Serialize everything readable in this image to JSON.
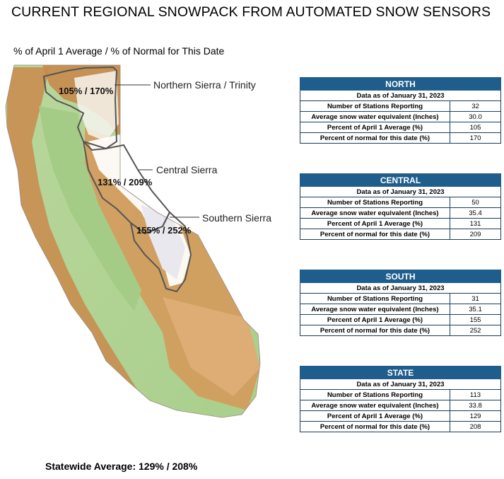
{
  "title": "CURRENT REGIONAL SNOWPACK FROM AUTOMATED SNOW SENSORS",
  "subtitle": "% of April 1 Average / % of Normal for This Date",
  "regions": {
    "north": {
      "name": "Northern Sierra / Trinity",
      "value": "105% / 170%"
    },
    "central": {
      "name": "Central Sierra",
      "value": "131% / 209%"
    },
    "south": {
      "name": "Southern Sierra",
      "value": "155% / 252%"
    }
  },
  "statewide": "Statewide Average: 129% / 208%",
  "colors": {
    "table_header": "#1f5e8c",
    "lowland": "#a8cf8e",
    "highland": "#c98a4b",
    "snow": "#ffffff",
    "region_outline": "#555555"
  },
  "tables": [
    {
      "header": "NORTH",
      "as_of": "Data as of January 31, 2023",
      "rows": [
        {
          "label": "Number of Stations Reporting",
          "value": "32"
        },
        {
          "label": "Average snow water equivalent (Inches)",
          "value": "30.0"
        },
        {
          "label": "Percent of April 1 Average (%)",
          "value": "105"
        },
        {
          "label": "Percent of normal for this date (%)",
          "value": "170"
        }
      ]
    },
    {
      "header": "CENTRAL",
      "as_of": "Data as of January 31, 2023",
      "rows": [
        {
          "label": "Number of Stations Reporting",
          "value": "50"
        },
        {
          "label": "Average snow water equivalent (Inches)",
          "value": "35.4"
        },
        {
          "label": "Percent of April 1 Average (%)",
          "value": "131"
        },
        {
          "label": "Percent of normal for this date (%)",
          "value": "209"
        }
      ]
    },
    {
      "header": "SOUTH",
      "as_of": "Data as of January 31, 2023",
      "rows": [
        {
          "label": "Number of Stations Reporting",
          "value": "31"
        },
        {
          "label": "Average snow water equivalent (Inches)",
          "value": "35.1"
        },
        {
          "label": "Percent of April 1 Average (%)",
          "value": "155"
        },
        {
          "label": "Percent of normal for this date (%)",
          "value": "252"
        }
      ]
    },
    {
      "header": "STATE",
      "as_of": "Data as of January 31, 2023",
      "rows": [
        {
          "label": "Number of Stations Reporting",
          "value": "113"
        },
        {
          "label": "Average snow water equivalent (Inches)",
          "value": "33.8"
        },
        {
          "label": "Percent of April 1 Average (%)",
          "value": "129"
        },
        {
          "label": "Percent of normal for this date (%)",
          "value": "208"
        }
      ]
    }
  ]
}
